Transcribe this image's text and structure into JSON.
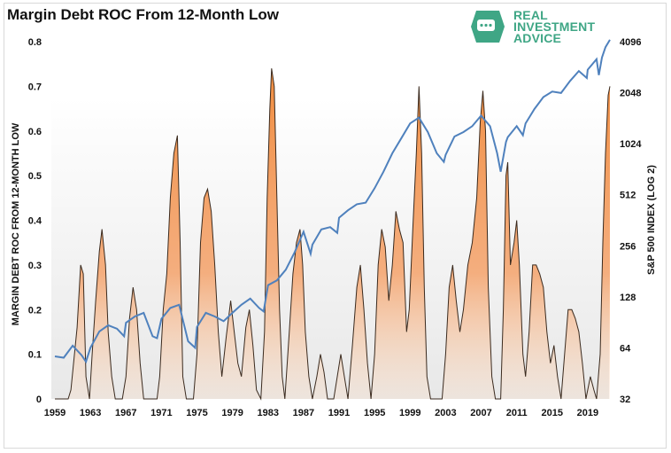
{
  "title": "Margin Debt ROC From 12-Month Low",
  "logo": {
    "line1": "REAL",
    "line2": "INVESTMENT",
    "line3": "ADVICE",
    "color": "#3fa685"
  },
  "chart_data": {
    "type": "area",
    "x_ticks": [
      "1959",
      "1963",
      "1967",
      "1971",
      "1975",
      "1979",
      "1983",
      "1987",
      "1991",
      "1995",
      "1999",
      "2003",
      "2007",
      "2011",
      "2015",
      "2019"
    ],
    "y_left": {
      "label": "MARGIN DEBT ROC FROM 12-MONTH LOW",
      "ticks": [
        0,
        0.1,
        0.2,
        0.3,
        0.4,
        0.5,
        0.6,
        0.7,
        0.8
      ],
      "range": [
        0,
        0.8
      ]
    },
    "y_right": {
      "label": "S&P 500 INDEX (LOG 2)",
      "ticks": [
        32,
        64,
        128,
        256,
        512,
        1024,
        2048,
        4096
      ],
      "range": [
        32,
        4096
      ],
      "scale": "log2"
    },
    "grid": false,
    "series": [
      {
        "name": "Margin Debt ROC From 12-Month Low",
        "color": "#f5924a",
        "axis": "left",
        "points": [
          [
            1959.0,
            0.0
          ],
          [
            1960.5,
            0.0
          ],
          [
            1960.8,
            0.02
          ],
          [
            1961.0,
            0.06
          ],
          [
            1961.5,
            0.16
          ],
          [
            1961.9,
            0.3
          ],
          [
            1962.2,
            0.28
          ],
          [
            1962.5,
            0.05
          ],
          [
            1962.9,
            0.0
          ],
          [
            1963.2,
            0.1
          ],
          [
            1963.6,
            0.22
          ],
          [
            1964.0,
            0.33
          ],
          [
            1964.3,
            0.38
          ],
          [
            1964.7,
            0.3
          ],
          [
            1965.0,
            0.15
          ],
          [
            1965.4,
            0.05
          ],
          [
            1965.8,
            0.0
          ],
          [
            1966.6,
            0.0
          ],
          [
            1967.0,
            0.05
          ],
          [
            1967.4,
            0.18
          ],
          [
            1967.8,
            0.25
          ],
          [
            1968.2,
            0.2
          ],
          [
            1968.6,
            0.08
          ],
          [
            1969.0,
            0.0
          ],
          [
            1970.5,
            0.0
          ],
          [
            1970.8,
            0.05
          ],
          [
            1971.2,
            0.2
          ],
          [
            1971.6,
            0.28
          ],
          [
            1972.0,
            0.45
          ],
          [
            1972.4,
            0.55
          ],
          [
            1972.8,
            0.59
          ],
          [
            1973.1,
            0.35
          ],
          [
            1973.4,
            0.05
          ],
          [
            1973.8,
            0.0
          ],
          [
            1974.6,
            0.0
          ],
          [
            1975.0,
            0.1
          ],
          [
            1975.4,
            0.35
          ],
          [
            1975.8,
            0.45
          ],
          [
            1976.2,
            0.47
          ],
          [
            1976.6,
            0.42
          ],
          [
            1977.0,
            0.3
          ],
          [
            1977.4,
            0.15
          ],
          [
            1977.8,
            0.05
          ],
          [
            1978.3,
            0.14
          ],
          [
            1978.8,
            0.22
          ],
          [
            1979.2,
            0.15
          ],
          [
            1979.6,
            0.08
          ],
          [
            1980.0,
            0.05
          ],
          [
            1980.5,
            0.16
          ],
          [
            1980.9,
            0.2
          ],
          [
            1981.3,
            0.12
          ],
          [
            1981.7,
            0.02
          ],
          [
            1982.2,
            0.0
          ],
          [
            1982.6,
            0.15
          ],
          [
            1982.9,
            0.45
          ],
          [
            1983.2,
            0.65
          ],
          [
            1983.4,
            0.74
          ],
          [
            1983.7,
            0.7
          ],
          [
            1984.0,
            0.45
          ],
          [
            1984.3,
            0.2
          ],
          [
            1984.6,
            0.05
          ],
          [
            1984.9,
            0.0
          ],
          [
            1985.4,
            0.15
          ],
          [
            1985.8,
            0.28
          ],
          [
            1986.2,
            0.35
          ],
          [
            1986.6,
            0.38
          ],
          [
            1986.9,
            0.3
          ],
          [
            1987.2,
            0.15
          ],
          [
            1987.6,
            0.05
          ],
          [
            1988.0,
            0.0
          ],
          [
            1988.5,
            0.05
          ],
          [
            1988.9,
            0.1
          ],
          [
            1989.3,
            0.06
          ],
          [
            1989.7,
            0.0
          ],
          [
            1990.4,
            0.0
          ],
          [
            1990.8,
            0.05
          ],
          [
            1991.2,
            0.1
          ],
          [
            1991.6,
            0.05
          ],
          [
            1992.0,
            0.0
          ],
          [
            1992.5,
            0.12
          ],
          [
            1993.0,
            0.25
          ],
          [
            1993.4,
            0.3
          ],
          [
            1993.8,
            0.2
          ],
          [
            1994.2,
            0.08
          ],
          [
            1994.6,
            0.0
          ],
          [
            1995.0,
            0.1
          ],
          [
            1995.4,
            0.3
          ],
          [
            1995.8,
            0.38
          ],
          [
            1996.2,
            0.34
          ],
          [
            1996.6,
            0.22
          ],
          [
            1997.0,
            0.3
          ],
          [
            1997.4,
            0.42
          ],
          [
            1997.8,
            0.38
          ],
          [
            1998.2,
            0.35
          ],
          [
            1998.6,
            0.15
          ],
          [
            1998.9,
            0.2
          ],
          [
            1999.3,
            0.38
          ],
          [
            1999.7,
            0.55
          ],
          [
            2000.0,
            0.7
          ],
          [
            2000.3,
            0.55
          ],
          [
            2000.6,
            0.25
          ],
          [
            2000.9,
            0.05
          ],
          [
            2001.3,
            0.0
          ],
          [
            2002.6,
            0.0
          ],
          [
            2003.0,
            0.1
          ],
          [
            2003.4,
            0.25
          ],
          [
            2003.8,
            0.3
          ],
          [
            2004.2,
            0.22
          ],
          [
            2004.6,
            0.15
          ],
          [
            2005.0,
            0.2
          ],
          [
            2005.5,
            0.3
          ],
          [
            2006.0,
            0.35
          ],
          [
            2006.5,
            0.45
          ],
          [
            2006.9,
            0.62
          ],
          [
            2007.2,
            0.69
          ],
          [
            2007.5,
            0.6
          ],
          [
            2007.8,
            0.25
          ],
          [
            2008.2,
            0.05
          ],
          [
            2008.6,
            0.0
          ],
          [
            2009.2,
            0.0
          ],
          [
            2009.5,
            0.2
          ],
          [
            2009.8,
            0.5
          ],
          [
            2010.0,
            0.53
          ],
          [
            2010.3,
            0.3
          ],
          [
            2010.7,
            0.35
          ],
          [
            2011.0,
            0.4
          ],
          [
            2011.3,
            0.3
          ],
          [
            2011.7,
            0.1
          ],
          [
            2012.0,
            0.05
          ],
          [
            2012.4,
            0.15
          ],
          [
            2012.8,
            0.3
          ],
          [
            2013.2,
            0.3
          ],
          [
            2013.6,
            0.28
          ],
          [
            2014.0,
            0.25
          ],
          [
            2014.4,
            0.15
          ],
          [
            2014.8,
            0.08
          ],
          [
            2015.2,
            0.12
          ],
          [
            2015.6,
            0.05
          ],
          [
            2016.0,
            0.0
          ],
          [
            2016.4,
            0.1
          ],
          [
            2016.8,
            0.2
          ],
          [
            2017.2,
            0.2
          ],
          [
            2017.6,
            0.18
          ],
          [
            2018.0,
            0.15
          ],
          [
            2018.4,
            0.08
          ],
          [
            2018.8,
            0.0
          ],
          [
            2019.3,
            0.05
          ],
          [
            2019.7,
            0.02
          ],
          [
            2020.0,
            0.0
          ],
          [
            2020.4,
            0.1
          ],
          [
            2020.7,
            0.35
          ],
          [
            2021.0,
            0.55
          ],
          [
            2021.3,
            0.68
          ],
          [
            2021.5,
            0.7
          ]
        ]
      },
      {
        "name": "S&P 500 Index",
        "color": "#4f81bd",
        "axis": "right",
        "points": [
          [
            1959,
            57
          ],
          [
            1960,
            56
          ],
          [
            1961,
            66
          ],
          [
            1962,
            58
          ],
          [
            1962.5,
            53
          ],
          [
            1963,
            64
          ],
          [
            1964,
            80
          ],
          [
            1965,
            87
          ],
          [
            1966,
            83
          ],
          [
            1966.8,
            75
          ],
          [
            1967,
            90
          ],
          [
            1968,
            98
          ],
          [
            1969,
            103
          ],
          [
            1970,
            75
          ],
          [
            1970.5,
            73
          ],
          [
            1971,
            95
          ],
          [
            1972,
            110
          ],
          [
            1973,
            115
          ],
          [
            1974,
            70
          ],
          [
            1974.8,
            64
          ],
          [
            1975,
            85
          ],
          [
            1976,
            103
          ],
          [
            1977,
            98
          ],
          [
            1978,
            92
          ],
          [
            1979,
            103
          ],
          [
            1980,
            115
          ],
          [
            1981,
            125
          ],
          [
            1982,
            110
          ],
          [
            1982.5,
            105
          ],
          [
            1983,
            150
          ],
          [
            1984,
            160
          ],
          [
            1985,
            185
          ],
          [
            1986,
            235
          ],
          [
            1987,
            310
          ],
          [
            1987.8,
            230
          ],
          [
            1988,
            260
          ],
          [
            1989,
            320
          ],
          [
            1990,
            330
          ],
          [
            1990.8,
            305
          ],
          [
            1991,
            375
          ],
          [
            1992,
            415
          ],
          [
            1993,
            450
          ],
          [
            1994,
            460
          ],
          [
            1995,
            560
          ],
          [
            1996,
            700
          ],
          [
            1997,
            900
          ],
          [
            1998,
            1100
          ],
          [
            1999,
            1350
          ],
          [
            2000,
            1460
          ],
          [
            2001,
            1200
          ],
          [
            2002,
            900
          ],
          [
            2002.8,
            800
          ],
          [
            2003,
            880
          ],
          [
            2004,
            1130
          ],
          [
            2005,
            1200
          ],
          [
            2006,
            1300
          ],
          [
            2007,
            1500
          ],
          [
            2008,
            1300
          ],
          [
            2008.8,
            900
          ],
          [
            2009.2,
            700
          ],
          [
            2009.8,
            1050
          ],
          [
            2010,
            1120
          ],
          [
            2011,
            1300
          ],
          [
            2011.7,
            1150
          ],
          [
            2012,
            1350
          ],
          [
            2013,
            1640
          ],
          [
            2014,
            1930
          ],
          [
            2015,
            2080
          ],
          [
            2016,
            2040
          ],
          [
            2017,
            2400
          ],
          [
            2018,
            2750
          ],
          [
            2018.9,
            2500
          ],
          [
            2019,
            2800
          ],
          [
            2020,
            3230
          ],
          [
            2020.25,
            2600
          ],
          [
            2020.6,
            3300
          ],
          [
            2021,
            3800
          ],
          [
            2021.5,
            4200
          ]
        ]
      }
    ]
  }
}
